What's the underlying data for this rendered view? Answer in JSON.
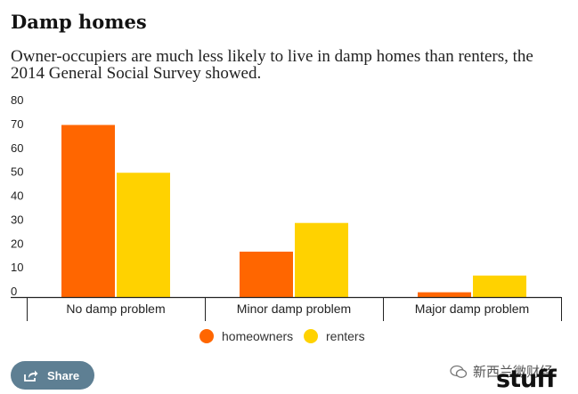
{
  "chart_data": {
    "type": "bar",
    "title": "Damp homes",
    "subtitle": "Owner-occupiers are much less likely to live in damp homes than renters, the 2014 General Social Survey showed.",
    "categories": [
      "No damp problem",
      "Minor damp problem",
      "Major damp problem"
    ],
    "series": [
      {
        "name": "homeowners",
        "color": "#ff6600",
        "values": [
          72,
          19,
          2
        ]
      },
      {
        "name": "renters",
        "color": "#ffd200",
        "values": [
          52,
          31,
          9
        ]
      }
    ],
    "ylim": [
      0,
      80
    ],
    "yticks": [
      0,
      10,
      20,
      30,
      40,
      50,
      60,
      70,
      80
    ],
    "xlabel": "",
    "ylabel": "",
    "grid": false,
    "legend_position": "bottom-center"
  },
  "footer": {
    "share_label": "Share",
    "share_icon": "share-icon",
    "watermark_text": "新西兰微财经",
    "watermark_logo": "stuff"
  }
}
